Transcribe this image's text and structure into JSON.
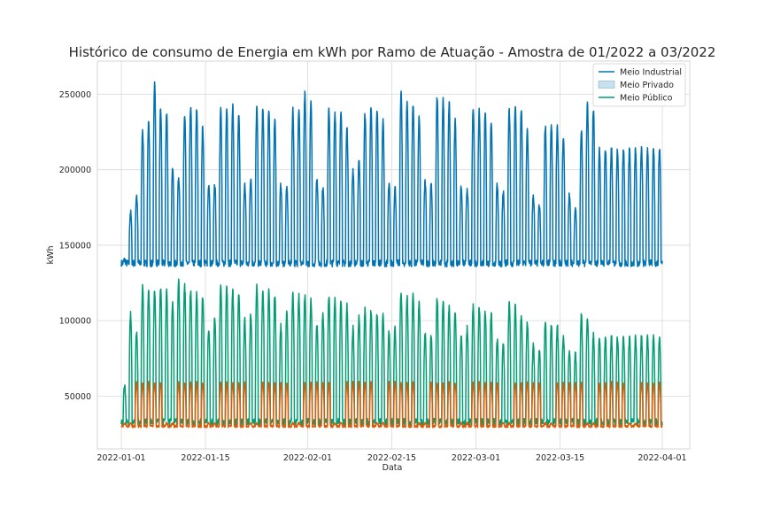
{
  "chart_data": {
    "type": "line",
    "title": "Histórico de consumo de Energia em kWh por Ramo de Atuação - Amostra de 01/2022 a 03/2022",
    "xlabel": "Data",
    "ylabel": "kWh",
    "x_range": [
      "2022-01-01",
      "2022-04-01"
    ],
    "ylim": [
      15000,
      272000
    ],
    "x_ticks": [
      "2022-01-01",
      "2022-01-15",
      "2022-02-01",
      "2022-02-15",
      "2022-03-01",
      "2022-03-15",
      "2022-04-01"
    ],
    "y_ticks": [
      50000,
      100000,
      150000,
      200000,
      250000
    ],
    "y_tick_labels": [
      "50000",
      "100000",
      "150000",
      "200000",
      "250000"
    ],
    "grid": true,
    "legend_position": "top-right",
    "sampling": "hourly, daily cycle",
    "series": [
      {
        "name": "Meio Industrial",
        "color": "#0173b2",
        "legend_kind": "line",
        "night_base": 138000,
        "daily_peaks": [
          140000,
          172000,
          183000,
          227000,
          232000,
          257000,
          240000,
          238000,
          200000,
          195000,
          237000,
          241000,
          240000,
          228000,
          190000,
          190000,
          240000,
          241000,
          242000,
          236000,
          190000,
          195000,
          241000,
          240000,
          240000,
          232000,
          190000,
          188000,
          240000,
          241000,
          250000,
          244000,
          195000,
          188000,
          240000,
          238000,
          240000,
          228000,
          200000,
          207000,
          237000,
          241000,
          240000,
          232000,
          190000,
          188000,
          252000,
          245000,
          244000,
          235000,
          192000,
          190000,
          248000,
          246000,
          244000,
          233000,
          188000,
          188000,
          242000,
          240000,
          238000,
          230000,
          190000,
          185000,
          240000,
          243000,
          240000,
          226000,
          183000,
          176000,
          229000,
          230000,
          228000,
          222000,
          184000,
          175000,
          226000,
          244000,
          240000,
          214000
        ]
      },
      {
        "name": "Meio Privado",
        "color": "#de5b05",
        "legend_kind": "band",
        "night_base": 30000,
        "weekday_peak": 59000,
        "weekend_peak": 32000
      },
      {
        "name": "Meio Público",
        "color": "#029e73",
        "legend_kind": "line",
        "night_base": 33000,
        "daily_peaks": [
          57000,
          104000,
          92000,
          123000,
          121000,
          120000,
          121000,
          120000,
          112000,
          126000,
          123000,
          121000,
          118000,
          117000,
          95000,
          102000,
          124000,
          122000,
          120000,
          118000,
          100000,
          105000,
          123000,
          121000,
          119000,
          117000,
          96000,
          106000,
          118000,
          116000,
          117000,
          114000,
          98000,
          105000,
          116000,
          114000,
          113000,
          110000,
          95000,
          102000,
          107000,
          106000,
          105000,
          104000,
          93000,
          95000,
          119000,
          116000,
          118000,
          112000,
          91000,
          90000,
          114000,
          112000,
          109000,
          106000,
          90000,
          95000,
          110000,
          109000,
          106000,
          104000,
          88000,
          85000,
          112000,
          110000,
          104000,
          100000,
          84000,
          80000,
          100000,
          98000,
          96000,
          90000,
          80000,
          78000,
          104000,
          102000,
          90000,
          89000
        ]
      }
    ]
  }
}
